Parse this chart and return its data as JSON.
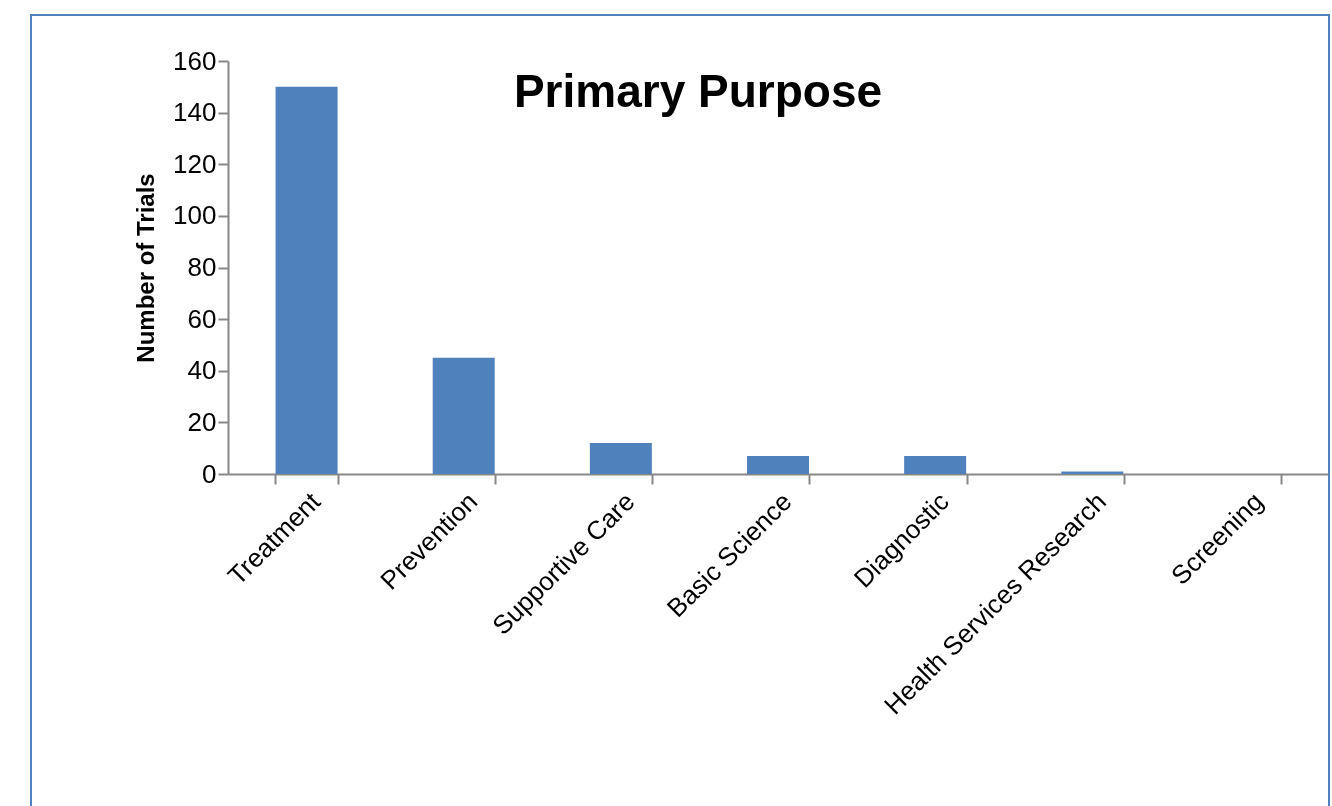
{
  "chart_data": {
    "type": "bar",
    "title": "Primary Purpose",
    "ylabel": "Number of Trials",
    "categories": [
      "Treatment",
      "Prevention",
      "Supportive Care",
      "Basic Science",
      "Diagnostic",
      "Health Services Research",
      "Screening"
    ],
    "values": [
      150,
      45,
      12,
      7,
      7,
      1,
      0
    ],
    "color": "#4f81bd",
    "ylim": [
      0,
      160
    ],
    "yticks": [
      0,
      20,
      40,
      60,
      80,
      100,
      120,
      140,
      160
    ],
    "grid": false
  }
}
